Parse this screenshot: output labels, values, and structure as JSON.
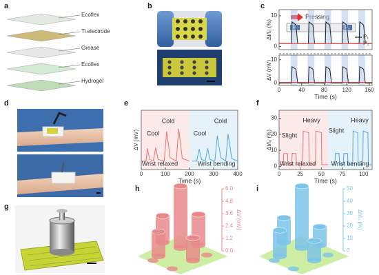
{
  "panel_a": {
    "label": "a",
    "layers": [
      "Ecoflex",
      "Ti electrode",
      "Grease",
      "Ecoflex",
      "Hydrogel"
    ]
  },
  "panel_b": {
    "label": "b"
  },
  "panel_c": {
    "label": "c",
    "annotation": "Pressing",
    "device_labels": [
      "P₁",
      "P₂"
    ],
    "xlabel": "Time (s)",
    "xlim": [
      0,
      165
    ],
    "xticks": [
      0,
      40,
      80,
      120,
      160
    ],
    "x": [
      0,
      22,
      23,
      30,
      33,
      52,
      53,
      60,
      63,
      82,
      83,
      90,
      93,
      112,
      113,
      120,
      123,
      142,
      143,
      150,
      153,
      165
    ],
    "top": {
      "ylabel": "ΔI/I₀ (%)",
      "ylim": [
        -1,
        12
      ],
      "yticks": [
        0,
        10
      ],
      "series": [
        {
          "name": "P₁",
          "color": "#222222",
          "values": [
            1,
            1,
            8,
            7,
            1,
            1,
            8,
            7,
            1,
            1,
            8,
            7,
            1,
            1,
            8,
            7,
            1,
            1,
            8,
            7,
            1,
            1
          ]
        },
        {
          "name": "P₂",
          "color": "#e03030",
          "values": [
            1,
            1,
            1,
            1,
            1,
            1,
            1,
            1,
            1,
            1,
            1,
            1,
            1,
            1,
            1,
            1,
            1,
            1,
            1,
            1,
            1,
            1
          ]
        }
      ]
    },
    "bottom": {
      "ylabel": "ΔV (mV)",
      "ylim": [
        -1,
        12
      ],
      "yticks": [
        0,
        10
      ],
      "series": [
        {
          "color": "#222222",
          "values": [
            0,
            0,
            7,
            6,
            0,
            0,
            7,
            6,
            0,
            0,
            7,
            6,
            0,
            0,
            7,
            6,
            0,
            0,
            7,
            6,
            0,
            0
          ]
        },
        {
          "color": "#e03030",
          "values": [
            0.3,
            0.3,
            0.3,
            0.3,
            0.3,
            0.3,
            0.3,
            0.3,
            0.3,
            0.3,
            0.3,
            0.3,
            0.3,
            0.3,
            0.3,
            0.3,
            0.3,
            0.3,
            0.3,
            0.3,
            0.3,
            0.3
          ]
        }
      ]
    }
  },
  "panel_d": {
    "label": "d"
  },
  "panel_e": {
    "label": "e",
    "xlabel": "Time (s)",
    "xlim": [
      0,
      400
    ],
    "xticks": [
      0,
      100,
      200,
      300,
      400
    ],
    "annotations": [
      "Cool",
      "Cold",
      "Cool",
      "Cold",
      "Wrist relaxed",
      "Wrist bending"
    ],
    "x": [
      0,
      20,
      25,
      35,
      50,
      60,
      70,
      95,
      105,
      120,
      145,
      155,
      170,
      200,
      210,
      230,
      240,
      250,
      265,
      275,
      285,
      305,
      315,
      330,
      350,
      360,
      375,
      400
    ],
    "plot": {
      "ylabel": "ΔV (mV)",
      "ylim": [
        0,
        7
      ],
      "series": [
        {
          "color": "#e8736f",
          "values": [
            1,
            1,
            2.5,
            1.2,
            1,
            2.6,
            1.2,
            1,
            4.5,
            1.4,
            1,
            4.8,
            1.3,
            1,
            null,
            null,
            null,
            null,
            null,
            null,
            null,
            null,
            null,
            null,
            null,
            null,
            null,
            null
          ]
        },
        {
          "color": "#4fa8dc",
          "values": [
            null,
            null,
            null,
            null,
            null,
            null,
            null,
            null,
            null,
            null,
            null,
            null,
            null,
            null,
            1,
            1,
            2.4,
            1.2,
            1,
            2.5,
            1.2,
            1,
            4.0,
            1.4,
            1,
            4.2,
            1.3,
            1
          ]
        }
      ]
    }
  },
  "panel_f": {
    "label": "f",
    "xlabel": "Time (s)",
    "xlim": [
      0,
      110
    ],
    "xticks": [
      0,
      25,
      50,
      75,
      100
    ],
    "annotations": [
      "Slight",
      "Heavy",
      "Slight",
      "Heavy",
      "Wrist relaxed",
      "Wrist bending"
    ],
    "x": [
      0,
      5,
      5.5,
      10,
      10.5,
      15,
      15.5,
      20,
      20.5,
      28,
      28.5,
      35,
      35.5,
      43,
      43.5,
      50,
      50.5,
      58,
      62,
      66,
      66.5,
      71,
      71.5,
      76,
      76.5,
      81,
      81.5,
      87,
      87.5,
      93,
      93.5,
      99,
      99.5,
      105,
      105.5,
      110
    ],
    "plot": {
      "ylabel": "ΔI/I₀ (%)",
      "ylim": [
        -2,
        35
      ],
      "yticks": [
        0,
        10,
        20,
        30
      ],
      "series": [
        {
          "color": "#e8736f",
          "values": [
            1,
            1,
            8,
            8,
            1,
            1,
            8,
            8,
            1,
            1,
            22,
            21,
            1,
            1,
            22,
            21,
            1,
            1,
            null,
            null,
            null,
            null,
            null,
            null,
            null,
            null,
            null,
            null,
            null,
            null,
            null,
            null,
            null,
            null,
            null,
            null
          ]
        },
        {
          "color": "#4fa8dc",
          "values": [
            null,
            null,
            null,
            null,
            null,
            null,
            null,
            null,
            null,
            null,
            null,
            null,
            null,
            null,
            null,
            null,
            null,
            null,
            1,
            1,
            8,
            8,
            1,
            1,
            8,
            8,
            1,
            1,
            22,
            21,
            1,
            1,
            22,
            21,
            1,
            1
          ]
        }
      ]
    }
  },
  "panel_g": {
    "label": "g"
  },
  "panel_h": {
    "label": "h",
    "zlabel": "ΔV (mV)",
    "zlim": [
      0,
      6
    ],
    "color": "#e88a8a",
    "zticks": [
      {
        "value": 0,
        "label": "0.0"
      },
      {
        "value": 1.2,
        "label": "1.2"
      },
      {
        "value": 2.4,
        "label": "2.4"
      },
      {
        "value": 3.6,
        "label": "3.6"
      },
      {
        "value": 4.8,
        "label": "4.8"
      },
      {
        "value": 6,
        "label": "6.0"
      }
    ],
    "values": [
      2.6,
      6.0,
      2.4,
      3.0,
      2.2
    ]
  },
  "panel_i": {
    "label": "i",
    "zlabel": "ΔI/I₀ (%)",
    "zlim": [
      0,
      50
    ],
    "color": "#7cc4e8",
    "zticks": [
      0,
      10,
      20,
      30,
      40,
      50
    ],
    "values": [
      20,
      50,
      21,
      15,
      16
    ]
  }
}
